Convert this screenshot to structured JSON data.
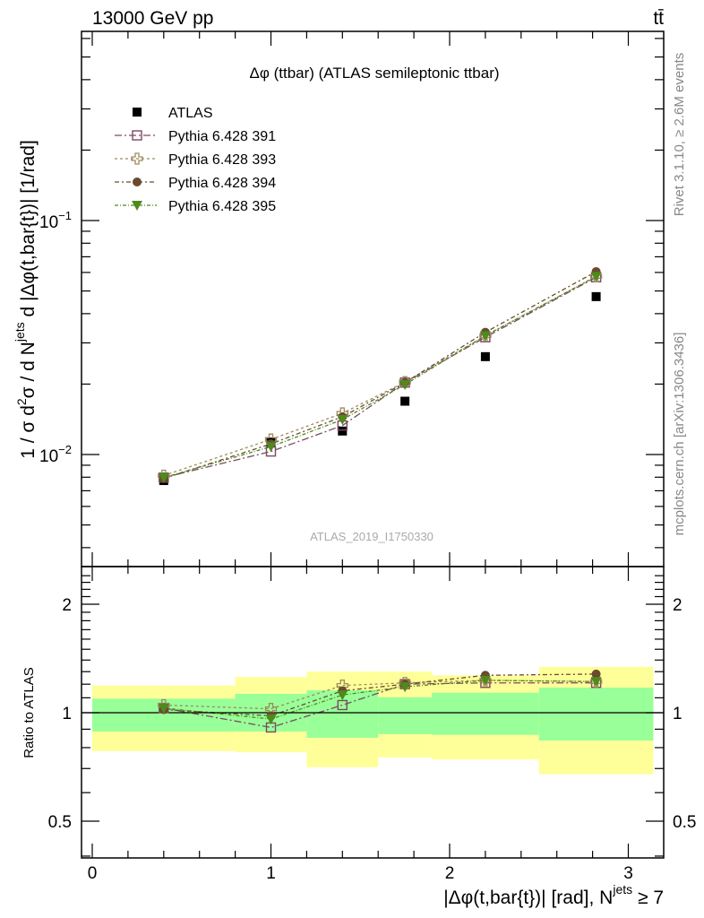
{
  "header": {
    "left": "13000 GeV pp",
    "right": "tt̄"
  },
  "side": {
    "rivet": "Rivet 3.1.10, ≥ 2.6M events",
    "mcplots": "mcplots.cern.ch [arXiv:1306.3436]"
  },
  "watermark": "ATLAS_2019_I1750330",
  "colors": {
    "yellow": "#ffff99",
    "green": "#99ff99"
  },
  "chart_data": [
    {
      "type": "scatter",
      "title": "Δφ (ttbar) (ATLAS semileptonic ttbar)",
      "ylabel_parts": [
        "1 / σ d",
        "2",
        "σ / d N",
        "jets",
        " d |Δφ(t,bar{t})| [1/rad]"
      ],
      "yscale": "log",
      "ylim": [
        0.00332,
        0.643
      ],
      "xlim": [
        -0.06,
        3.2
      ],
      "yticks": [
        {
          "base": "10",
          "exp": "−1",
          "value": 0.1
        },
        {
          "base": "10",
          "exp": "−2",
          "value": 0.01
        }
      ],
      "legend_placement": "top-left",
      "x": [
        0.4,
        1.0,
        1.4,
        1.75,
        2.2,
        2.82
      ],
      "series": [
        {
          "name": "ATLAS",
          "marker": "square-filled",
          "color": "#000000",
          "values": [
            0.00774,
            0.0113,
            0.0126,
            0.0169,
            0.0262,
            0.0473
          ]
        },
        {
          "name": "Pythia 6.428 391",
          "marker": "square-open",
          "color": "#7b4a62",
          "dash": "8,3,2,3",
          "values": [
            0.00797,
            0.0103,
            0.0133,
            0.0203,
            0.0317,
            0.0572
          ]
        },
        {
          "name": "Pythia 6.428 393",
          "marker": "cross-open",
          "color": "#9c8b5c",
          "dash": "3,3",
          "values": [
            0.00813,
            0.0116,
            0.015,
            0.0204,
            0.0322,
            0.0577
          ]
        },
        {
          "name": "Pythia 6.428 394",
          "marker": "circle-filled",
          "color": "#6b4a30",
          "dash": "5,3,2,3",
          "values": [
            0.0079,
            0.0111,
            0.0145,
            0.0203,
            0.0333,
            0.0605
          ]
        },
        {
          "name": "Pythia 6.428 395",
          "marker": "triangle-down-filled",
          "color": "#4e8a1c",
          "dash": "4,2,1,2",
          "values": [
            0.00797,
            0.0108,
            0.0141,
            0.0199,
            0.0322,
            0.0577
          ]
        }
      ]
    },
    {
      "type": "scatter",
      "ylabel": "Ratio to ATLAS",
      "xlabel_parts": [
        "|Δφ(t,bar{t})| [rad], N",
        "jets",
        " ≥ 7"
      ],
      "yscale": "log",
      "ylim": [
        0.395,
        2.54
      ],
      "xlim": [
        -0.06,
        3.2
      ],
      "yticks": [
        {
          "label": "0.5",
          "value": 0.5
        },
        {
          "label": "1",
          "value": 1
        },
        {
          "label": "2",
          "value": 2
        }
      ],
      "xticks": [
        {
          "label": "0",
          "value": 0
        },
        {
          "label": "1",
          "value": 1
        },
        {
          "label": "2",
          "value": 2
        },
        {
          "label": "3",
          "value": 3
        }
      ],
      "bin_edges": [
        0,
        0.8,
        1.2,
        1.6,
        1.9,
        2.5,
        3.14
      ],
      "band_yellow": {
        "lo": [
          0.783,
          0.777,
          0.706,
          0.751,
          0.742,
          0.675
        ],
        "hi": [
          1.19,
          1.257,
          1.3,
          1.3,
          1.27,
          1.34
        ]
      },
      "band_green": {
        "lo": [
          0.887,
          0.887,
          0.852,
          0.872,
          0.868,
          0.837
        ],
        "hi": [
          1.094,
          1.128,
          1.154,
          1.104,
          1.136,
          1.174
        ]
      },
      "x": [
        0.4,
        1.0,
        1.4,
        1.75,
        2.2,
        2.82
      ],
      "series": [
        {
          "name": "Pythia 6.428 391",
          "values": [
            1.03,
            0.91,
            1.05,
            1.2,
            1.21,
            1.21
          ]
        },
        {
          "name": "Pythia 6.428 393",
          "values": [
            1.05,
            1.025,
            1.19,
            1.21,
            1.23,
            1.22
          ]
        },
        {
          "name": "Pythia 6.428 394",
          "values": [
            1.02,
            0.98,
            1.15,
            1.2,
            1.27,
            1.28
          ]
        },
        {
          "name": "Pythia 6.428 395",
          "values": [
            1.03,
            0.96,
            1.12,
            1.18,
            1.23,
            1.22
          ]
        }
      ]
    }
  ]
}
